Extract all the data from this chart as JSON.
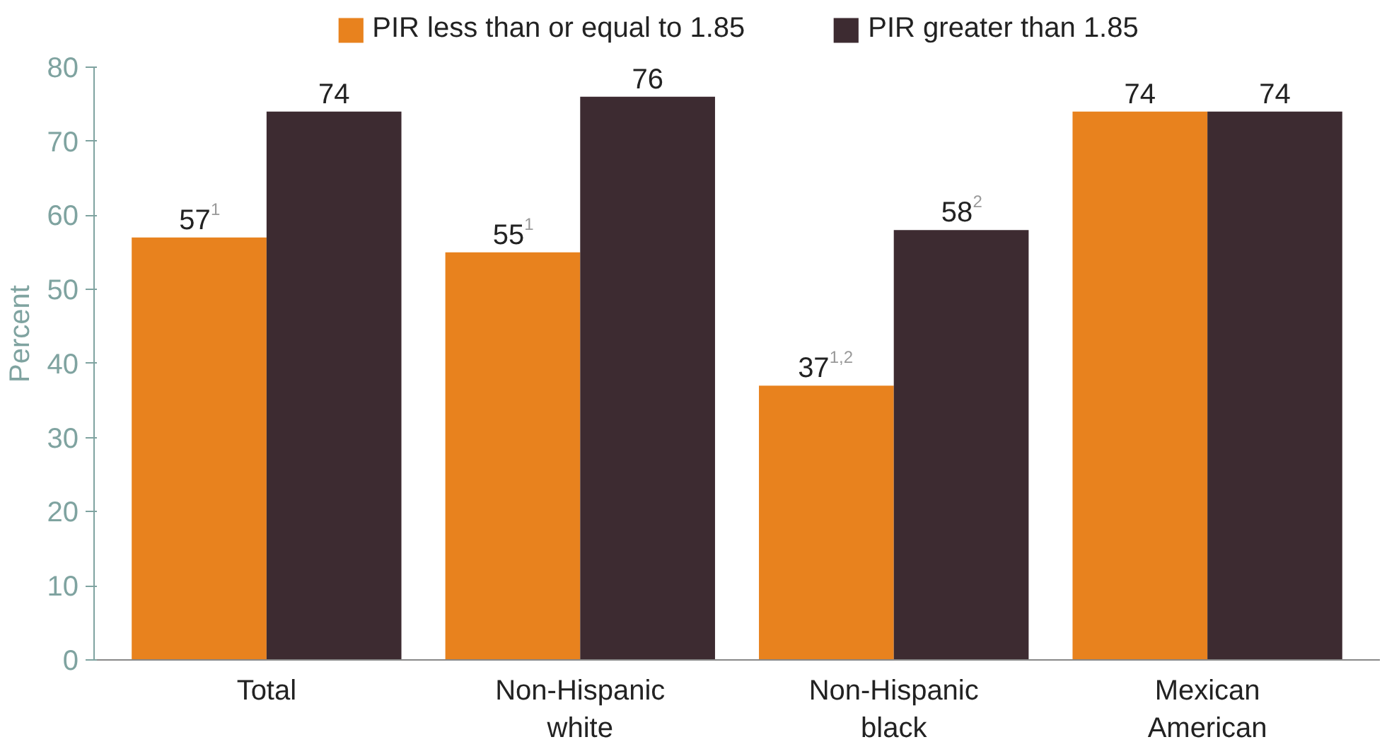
{
  "chart_data": {
    "type": "bar",
    "ylabel": "Percent",
    "categories": [
      "Total",
      "Non-Hispanic\nwhite",
      "Non-Hispanic\nblack",
      "Mexican\nAmerican"
    ],
    "series": [
      {
        "name": "PIR less than or equal to 1.85",
        "color": "#e8821e",
        "values": [
          57,
          55,
          37,
          74
        ],
        "value_labels": [
          "57$^{1}$",
          "55$^{1}$",
          "37$^{1,2}$",
          "74"
        ]
      },
      {
        "name": "PIR greater than 1.85",
        "color": "#3d2b31",
        "values": [
          74,
          76,
          58,
          74
        ],
        "value_labels": [
          "74",
          "76",
          "58$^{2}$",
          "74"
        ]
      }
    ],
    "ylim": [
      0,
      80
    ],
    "yticks": [
      0,
      10,
      20,
      30,
      40,
      50,
      60,
      70,
      80
    ],
    "grid": false,
    "legend": "top"
  }
}
